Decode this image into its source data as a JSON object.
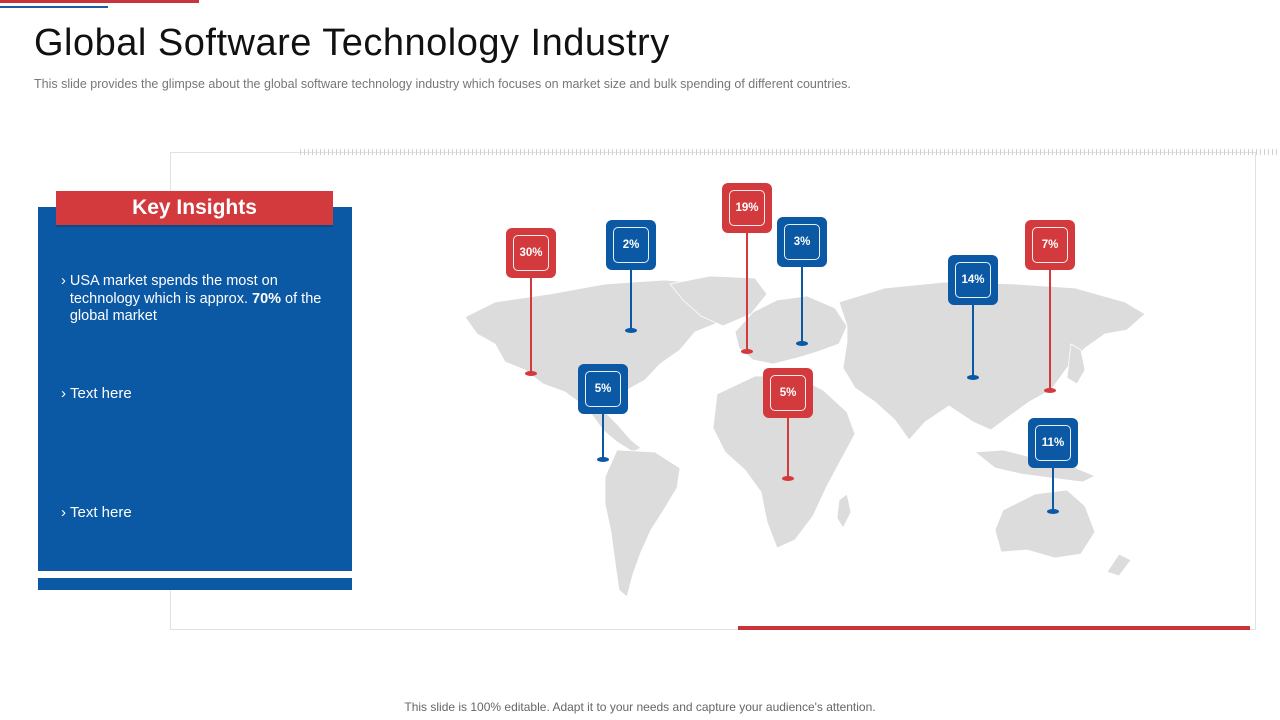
{
  "slide": {
    "title": "Global Software Technology Industry",
    "subtitle": "This slide provides  the glimpse about the global software  technology industry which focuses on market size and bulk spending of different  countries.",
    "footer": "This slide is 100% editable. Adapt it to your needs and capture your audience's attention."
  },
  "panel": {
    "heading": "Key Insights",
    "items": [
      {
        "prefix": "USA market spends the most on technology which is approx. ",
        "highlight": "70%",
        "suffix": " of the global market"
      },
      {
        "text": "Text here"
      },
      {
        "text": "Text here"
      }
    ]
  },
  "markers": [
    {
      "label": "30%",
      "color": "red"
    },
    {
      "label": "2%",
      "color": "blue"
    },
    {
      "label": "5%",
      "color": "blue"
    },
    {
      "label": "19%",
      "color": "red"
    },
    {
      "label": "3%",
      "color": "blue"
    },
    {
      "label": "5%",
      "color": "red"
    },
    {
      "label": "14%",
      "color": "blue"
    },
    {
      "label": "7%",
      "color": "red"
    },
    {
      "label": "11%",
      "color": "blue"
    }
  ],
  "colors": {
    "accent_red": "#d33a3d",
    "accent_blue": "#0b58a5",
    "map_gray": "#dcdcdc"
  }
}
